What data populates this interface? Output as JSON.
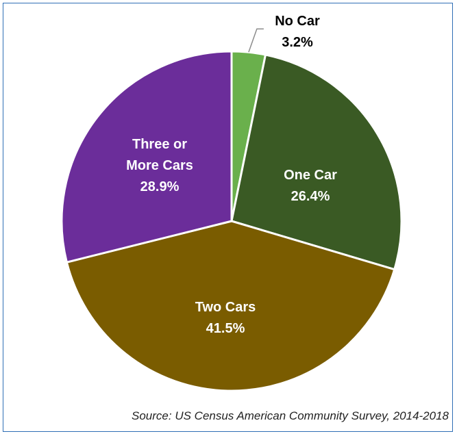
{
  "chart_data": {
    "type": "pie",
    "slices": [
      {
        "label_lines": [
          "No Car"
        ],
        "value_text": "3.2%",
        "value": 3.2,
        "color": "#6ab04c",
        "text_color": "#000000"
      },
      {
        "label_lines": [
          "One Car"
        ],
        "value_text": "26.4%",
        "value": 26.4,
        "color": "#3a5a24",
        "text_color": "#ffffff"
      },
      {
        "label_lines": [
          "Two Cars"
        ],
        "value_text": "41.5%",
        "value": 41.5,
        "color": "#7a5c00",
        "text_color": "#ffffff"
      },
      {
        "label_lines": [
          "Three or",
          "More Cars"
        ],
        "value_text": "28.9%",
        "value": 28.9,
        "color": "#6b2d9a",
        "text_color": "#ffffff"
      }
    ],
    "start_angle": "12 o'clock",
    "direction": "clockwise",
    "legend": "none",
    "source": "Source: US Census American Community Survey, 2014-2018"
  }
}
